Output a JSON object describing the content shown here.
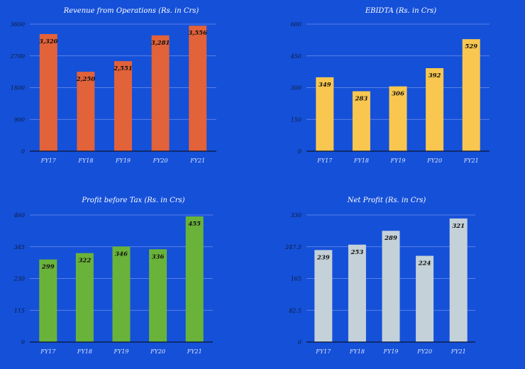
{
  "chart_data": [
    {
      "type": "bar",
      "title": "Revenue from Operations (Rs. in Crs)",
      "categories": [
        "FY17",
        "FY18",
        "FY19",
        "FY20",
        "FY21"
      ],
      "values": [
        3320,
        2250,
        2551,
        3281,
        3556
      ],
      "value_labels": [
        "3,320",
        "2,250",
        "2,551",
        "3,281",
        "3,556"
      ],
      "yticks": [
        "0",
        "900",
        "1800",
        "2700",
        "3600"
      ],
      "ylim": [
        0,
        3600
      ],
      "bar_color": "#e2623a",
      "grid": true
    },
    {
      "type": "bar",
      "title": "EBIDTA (Rs. in Crs)",
      "categories": [
        "FY17",
        "FY18",
        "FY19",
        "FY20",
        "FY21"
      ],
      "values": [
        349,
        283,
        306,
        392,
        529
      ],
      "value_labels": [
        "349",
        "283",
        "306",
        "392",
        "529"
      ],
      "yticks": [
        "0",
        "150",
        "300",
        "450",
        "600"
      ],
      "ylim": [
        0,
        600
      ],
      "bar_color": "#f9c74f",
      "grid": true
    },
    {
      "type": "bar",
      "title": "Profit before Tax (Rs. in Crs)",
      "categories": [
        "FY17",
        "FY18",
        "FY19",
        "FY20",
        "FY21"
      ],
      "values": [
        299,
        322,
        346,
        336,
        455
      ],
      "value_labels": [
        "299",
        "322",
        "346",
        "336",
        "455"
      ],
      "yticks": [
        "0",
        "115",
        "230",
        "345",
        "460"
      ],
      "ylim": [
        0,
        460
      ],
      "bar_color": "#6ab33a",
      "grid": true
    },
    {
      "type": "bar",
      "title": "Net Profit (Rs. in Crs)",
      "categories": [
        "FY17",
        "FY18",
        "FY19",
        "FY20",
        "FY21"
      ],
      "values": [
        239,
        253,
        289,
        224,
        321
      ],
      "value_labels": [
        "239",
        "253",
        "289",
        "224",
        "321"
      ],
      "yticks": [
        "0",
        "82.5",
        "165",
        "247.5",
        "330"
      ],
      "ylim": [
        0,
        330
      ],
      "bar_color": "#c4d1d8",
      "grid": true
    }
  ]
}
